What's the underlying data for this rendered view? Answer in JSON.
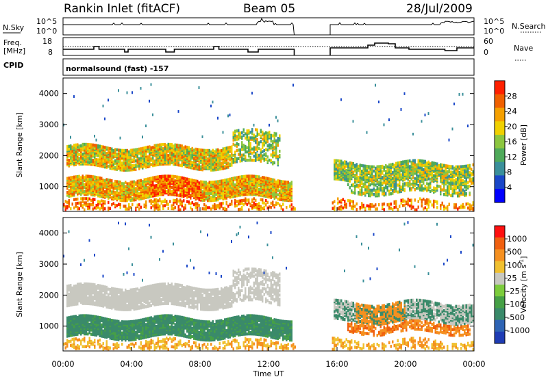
{
  "header": {
    "title": "Rankin Inlet (fitACF)",
    "beam": "Beam 05",
    "date": "28/Jul/2009"
  },
  "strips": {
    "nsky_label": "N.Sky",
    "nsky_ticks": [
      "10^5",
      "10^0"
    ],
    "nsearch_label": "N.Search",
    "nsearch_ticks": [
      "10^5",
      "10^0"
    ],
    "freq_label": "Freq.",
    "freq_unit": "[MHz]",
    "freq_ticks": [
      "18",
      "8"
    ],
    "nave_label": "Nave",
    "nave_ticks": [
      "60",
      "0"
    ],
    "cpid_label": "CPID",
    "cpid_text": "normalsound (fast) -157"
  },
  "chart_data": [
    {
      "type": "heatmap",
      "panel": "power",
      "title": "",
      "xlabel": "Time UT",
      "ylabel": "Slant Range [km]",
      "x_ticks": [
        "00:00",
        "04:00",
        "08:00",
        "12:00",
        "16:00",
        "20:00",
        "00:00"
      ],
      "y_ticks": [
        "1000",
        "2000",
        "3000",
        "4000"
      ],
      "ylim": [
        200,
        4500
      ],
      "colorbar": {
        "label": "Power [dB]",
        "ticks": [
          "4",
          "8",
          "12",
          "16",
          "20",
          "24",
          "28"
        ],
        "colors": [
          "#0000ff",
          "#1a47c8",
          "#3a8f9a",
          "#4faa5a",
          "#8cc63f",
          "#f0d000",
          "#f5a000",
          "#f06000",
          "#ff2000"
        ]
      },
      "data_gap_hours": [
        13.5,
        15.6
      ]
    },
    {
      "type": "heatmap",
      "panel": "velocity",
      "title": "",
      "xlabel": "Time UT",
      "ylabel": "Slant Range [km]",
      "x_ticks": [
        "00:00",
        "04:00",
        "08:00",
        "12:00",
        "16:00",
        "20:00",
        "00:00"
      ],
      "y_ticks": [
        "1000",
        "2000",
        "3000",
        "4000"
      ],
      "ylim": [
        200,
        4500
      ],
      "colorbar": {
        "label": "Velocity [m s^-1]",
        "ticks": [
          "1000",
          "500",
          "100",
          "25",
          "-25",
          "-100",
          "-500",
          "-1000"
        ],
        "colors": [
          "#1e3cb4",
          "#2e64b4",
          "#3a8a6a",
          "#46a046",
          "#7ccc3c",
          "#c8c8c0",
          "#f0c030",
          "#f59020",
          "#f06010",
          "#ff1010"
        ]
      },
      "data_gap_hours": [
        13.5,
        15.6
      ]
    }
  ],
  "colors": {
    "noise_ground": "#f0a000",
    "gs_gray": "#c0c0b8"
  }
}
